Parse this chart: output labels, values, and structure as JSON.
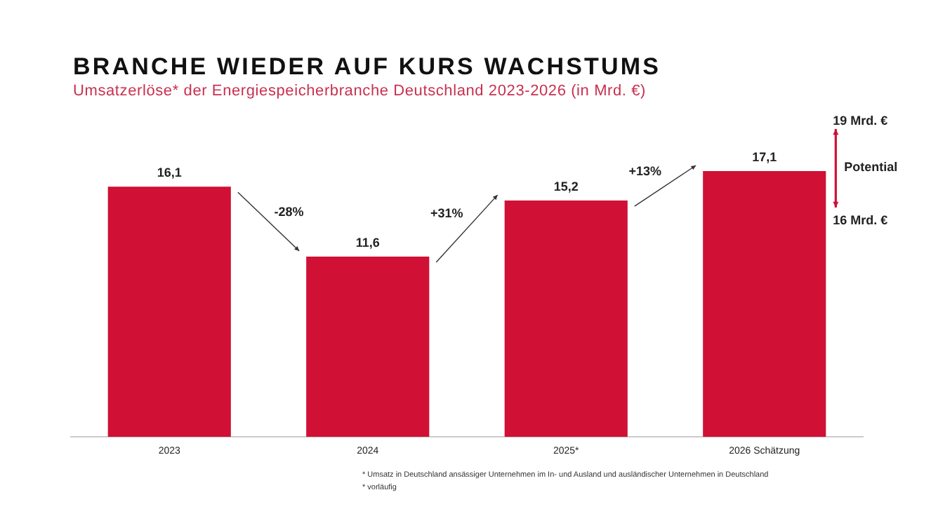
{
  "chart_data": {
    "type": "bar",
    "title": "BRANCHE WIEDER AUF KURS WACHSTUMS",
    "subtitle": "Umsatzerlöse* der Energiespeicherbranche Deutschland 2023-2026 (in Mrd. €)",
    "categories": [
      "2023",
      "2024",
      "2025*",
      "2026 Schätzung"
    ],
    "values": [
      16.1,
      11.6,
      15.2,
      17.1
    ],
    "value_labels": [
      "16,1",
      "11,6",
      "15,2",
      "17,1"
    ],
    "color": "#d01035",
    "annotations": [
      "-28%",
      "+31%",
      "+13%",
      "19 Mrd. €",
      "Potential",
      "16 Mrd. €",
      "* Umsatz in Deutschland ansässiger Unternehmen im In- und Ausland und ausländischer Unternehmen in Deutschland",
      "* vorläufig"
    ],
    "grid": false,
    "legend": false
  }
}
